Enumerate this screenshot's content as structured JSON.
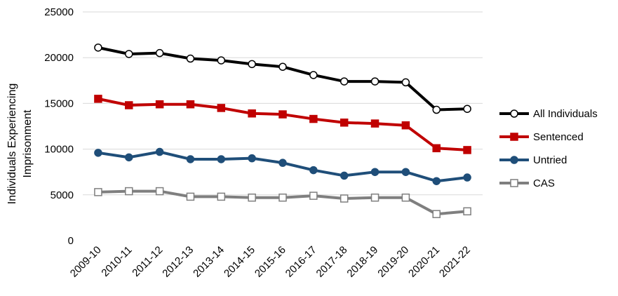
{
  "chart_data": {
    "type": "line",
    "ylabel_lines": [
      "Individuals Experiencing",
      "Imprisonment"
    ],
    "xlabel": "",
    "categories": [
      "2009-10",
      "2010-11",
      "2011-12",
      "2012-13",
      "2013-14",
      "2014-15",
      "2015-16",
      "2016-17",
      "2017-18",
      "2018-19",
      "2019-20",
      "2020-21",
      "2021-22"
    ],
    "ylim": [
      0,
      25000
    ],
    "yticks": [
      "0",
      "5000",
      "10000",
      "15000",
      "20000",
      "25000"
    ],
    "grid": true,
    "legend_position": "right",
    "series": [
      {
        "name": "All Individuals",
        "color": "#000000",
        "marker": "circle",
        "marker_fill": "#ffffff",
        "values": [
          21100,
          20400,
          20500,
          19900,
          19700,
          19300,
          19000,
          18100,
          17400,
          17400,
          17300,
          14300,
          14400
        ]
      },
      {
        "name": "Sentenced",
        "color": "#c00000",
        "marker": "square",
        "marker_fill": "#c00000",
        "values": [
          15500,
          14800,
          14900,
          14900,
          14500,
          13900,
          13800,
          13300,
          12900,
          12800,
          12600,
          10100,
          9900
        ]
      },
      {
        "name": "Untried",
        "color": "#1f4e79",
        "marker": "circle",
        "marker_fill": "#1f4e79",
        "values": [
          9600,
          9100,
          9700,
          8900,
          8900,
          9000,
          8500,
          7700,
          7100,
          7500,
          7500,
          6500,
          6900
        ]
      },
      {
        "name": "CAS",
        "color": "#7f7f7f",
        "marker": "square",
        "marker_fill": "#ffffff",
        "values": [
          5300,
          5400,
          5400,
          4800,
          4800,
          4700,
          4700,
          4900,
          4600,
          4700,
          4700,
          2900,
          3200
        ]
      }
    ]
  }
}
